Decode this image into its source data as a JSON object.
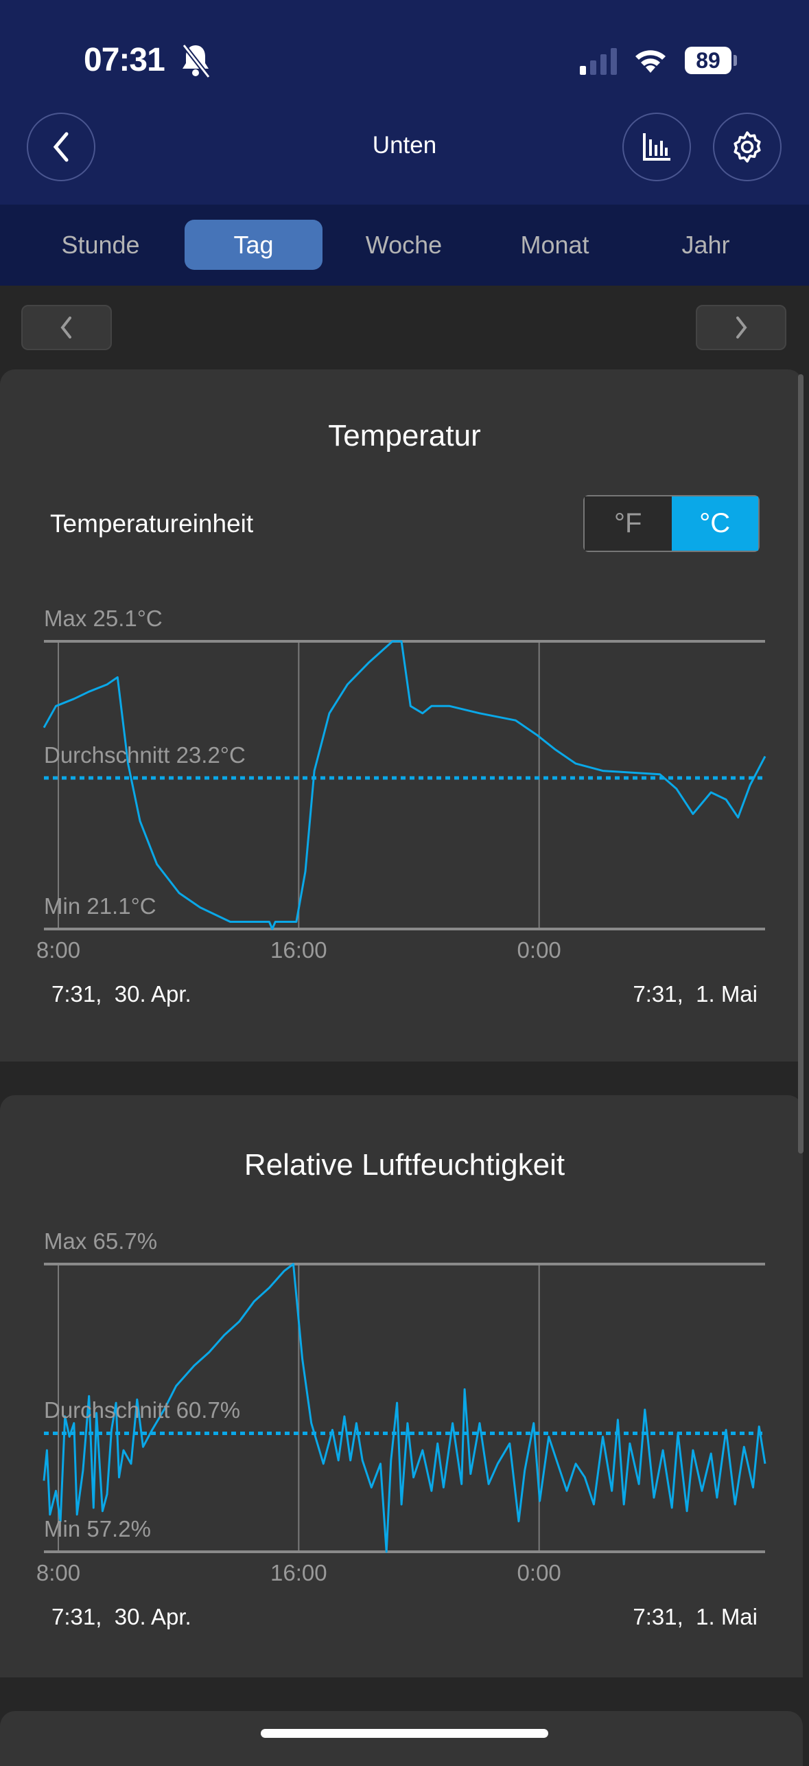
{
  "status_bar": {
    "time": "07:31",
    "battery": "89",
    "icons": [
      "bell-slash-icon",
      "signal-icon",
      "wifi-icon",
      "battery-icon"
    ]
  },
  "header": {
    "title": "Unten",
    "back_icon": "chevron-left-icon",
    "chart_icon": "bar-chart-icon",
    "settings_icon": "gear-icon"
  },
  "tabs": [
    {
      "label": "Stunde"
    },
    {
      "label": "Tag",
      "active": true
    },
    {
      "label": "Woche"
    },
    {
      "label": "Monat"
    },
    {
      "label": "Jahr"
    }
  ],
  "colors": {
    "accent": "#0aa8e8",
    "header": "#16225a",
    "tabbar": "#0f1a48",
    "active_tab": "#4674b8",
    "card": "#353535"
  },
  "temperature_card": {
    "title": "Temperatur",
    "unit_label": "Temperatureinheit",
    "unit_options": [
      "°F",
      "°C"
    ],
    "selected_unit": "°C"
  },
  "humidity_card": {
    "title": "Relative Luftfeuchtigkeit"
  },
  "chart_data": [
    {
      "type": "line",
      "title": "Temperatur",
      "max_label": "Max 25.1°C",
      "avg_label": "Durchschnitt 23.2°C",
      "min_label": "Min 21.1°C",
      "ylim": [
        21.1,
        25.1
      ],
      "average": 23.2,
      "x_unit": "hours since 7:31, 30. Apr.",
      "xlim": [
        0,
        24
      ],
      "x_ticks": [
        {
          "label": "8:00",
          "x": 0.48
        },
        {
          "label": "16:00",
          "x": 8.48
        },
        {
          "label": "0:00",
          "x": 16.48
        }
      ],
      "start_label": "7:31,  30. Apr.",
      "end_label": "7:31,  1. Mai",
      "points": [
        [
          0,
          23.9
        ],
        [
          0.4,
          24.2
        ],
        [
          1.0,
          24.3
        ],
        [
          1.5,
          24.4
        ],
        [
          2.1,
          24.5
        ],
        [
          2.45,
          24.6
        ],
        [
          2.8,
          23.4
        ],
        [
          3.2,
          22.6
        ],
        [
          3.76,
          22.0
        ],
        [
          4.5,
          21.6
        ],
        [
          5.2,
          21.4
        ],
        [
          6.2,
          21.2
        ],
        [
          7.5,
          21.2
        ],
        [
          7.6,
          21.1
        ],
        [
          7.7,
          21.2
        ],
        [
          8.4,
          21.2
        ],
        [
          8.7,
          21.9
        ],
        [
          9.0,
          23.3
        ],
        [
          9.5,
          24.1
        ],
        [
          10.1,
          24.5
        ],
        [
          10.8,
          24.8
        ],
        [
          11.6,
          25.1
        ],
        [
          11.9,
          25.1
        ],
        [
          12.2,
          24.2
        ],
        [
          12.6,
          24.1
        ],
        [
          12.9,
          24.2
        ],
        [
          13.5,
          24.2
        ],
        [
          14.5,
          24.1
        ],
        [
          15.7,
          24.0
        ],
        [
          16.4,
          23.8
        ],
        [
          17.0,
          23.6
        ],
        [
          17.7,
          23.4
        ],
        [
          18.6,
          23.3
        ],
        [
          20.5,
          23.25
        ],
        [
          21.05,
          23.05
        ],
        [
          21.6,
          22.7
        ],
        [
          22.2,
          23.0
        ],
        [
          22.7,
          22.9
        ],
        [
          23.1,
          22.65
        ],
        [
          23.5,
          23.1
        ],
        [
          24,
          23.5
        ]
      ]
    },
    {
      "type": "line",
      "title": "Relative Luftfeuchtigkeit",
      "max_label": "Max 65.7%",
      "avg_label": "Durchschnitt 60.7%",
      "min_label": "Min 57.2%",
      "ylim": [
        57.2,
        65.7
      ],
      "average": 60.7,
      "x_unit": "hours since 7:31, 30. Apr.",
      "xlim": [
        0,
        24
      ],
      "x_ticks": [
        {
          "label": "8:00",
          "x": 0.48
        },
        {
          "label": "16:00",
          "x": 8.48
        },
        {
          "label": "0:00",
          "x": 16.48
        }
      ],
      "start_label": "7:31,  30. Apr.",
      "end_label": "7:31,  1. Mai",
      "points": [
        [
          0,
          59.3
        ],
        [
          0.1,
          60.2
        ],
        [
          0.2,
          58.3
        ],
        [
          0.4,
          59.0
        ],
        [
          0.55,
          58.1
        ],
        [
          0.7,
          61.2
        ],
        [
          0.85,
          60.6
        ],
        [
          1.0,
          61.0
        ],
        [
          1.1,
          58.3
        ],
        [
          1.3,
          59.6
        ],
        [
          1.5,
          61.8
        ],
        [
          1.65,
          58.5
        ],
        [
          1.75,
          61.3
        ],
        [
          1.95,
          58.4
        ],
        [
          2.1,
          58.9
        ],
        [
          2.25,
          60.8
        ],
        [
          2.4,
          61.6
        ],
        [
          2.5,
          59.4
        ],
        [
          2.65,
          60.2
        ],
        [
          2.9,
          59.8
        ],
        [
          3.1,
          61.7
        ],
        [
          3.3,
          60.3
        ],
        [
          3.6,
          60.8
        ],
        [
          4.0,
          61.4
        ],
        [
          4.4,
          62.1
        ],
        [
          5.0,
          62.7
        ],
        [
          5.5,
          63.1
        ],
        [
          6.0,
          63.6
        ],
        [
          6.5,
          64.0
        ],
        [
          7.0,
          64.6
        ],
        [
          7.5,
          65.0
        ],
        [
          8.0,
          65.5
        ],
        [
          8.3,
          65.7
        ],
        [
          8.6,
          62.9
        ],
        [
          8.9,
          61.0
        ],
        [
          9.3,
          59.8
        ],
        [
          9.6,
          60.8
        ],
        [
          9.8,
          59.9
        ],
        [
          10.0,
          61.2
        ],
        [
          10.2,
          59.9
        ],
        [
          10.4,
          61.0
        ],
        [
          10.6,
          59.9
        ],
        [
          10.9,
          59.1
        ],
        [
          11.2,
          59.8
        ],
        [
          11.4,
          57.2
        ],
        [
          11.55,
          59.9
        ],
        [
          11.75,
          61.6
        ],
        [
          11.9,
          58.6
        ],
        [
          12.1,
          61.0
        ],
        [
          12.3,
          59.4
        ],
        [
          12.6,
          60.2
        ],
        [
          12.9,
          59.0
        ],
        [
          13.1,
          60.4
        ],
        [
          13.3,
          59.1
        ],
        [
          13.6,
          61.0
        ],
        [
          13.9,
          59.2
        ],
        [
          14.0,
          62.0
        ],
        [
          14.2,
          59.5
        ],
        [
          14.5,
          61.0
        ],
        [
          14.8,
          59.2
        ],
        [
          15.1,
          59.8
        ],
        [
          15.5,
          60.4
        ],
        [
          15.8,
          58.1
        ],
        [
          16.0,
          59.6
        ],
        [
          16.3,
          61.0
        ],
        [
          16.5,
          58.7
        ],
        [
          16.8,
          60.6
        ],
        [
          17.1,
          59.8
        ],
        [
          17.4,
          59.0
        ],
        [
          17.7,
          59.8
        ],
        [
          18.0,
          59.4
        ],
        [
          18.3,
          58.6
        ],
        [
          18.6,
          60.6
        ],
        [
          18.9,
          59.0
        ],
        [
          19.1,
          61.1
        ],
        [
          19.3,
          58.6
        ],
        [
          19.5,
          60.4
        ],
        [
          19.8,
          59.2
        ],
        [
          20.0,
          61.4
        ],
        [
          20.3,
          58.8
        ],
        [
          20.6,
          60.2
        ],
        [
          20.9,
          58.5
        ],
        [
          21.1,
          60.7
        ],
        [
          21.4,
          58.4
        ],
        [
          21.6,
          60.2
        ],
        [
          21.9,
          59.0
        ],
        [
          22.2,
          60.1
        ],
        [
          22.4,
          58.8
        ],
        [
          22.7,
          60.8
        ],
        [
          23.0,
          58.6
        ],
        [
          23.3,
          60.3
        ],
        [
          23.6,
          59.1
        ],
        [
          23.8,
          60.9
        ],
        [
          24.0,
          59.8
        ]
      ]
    }
  ]
}
